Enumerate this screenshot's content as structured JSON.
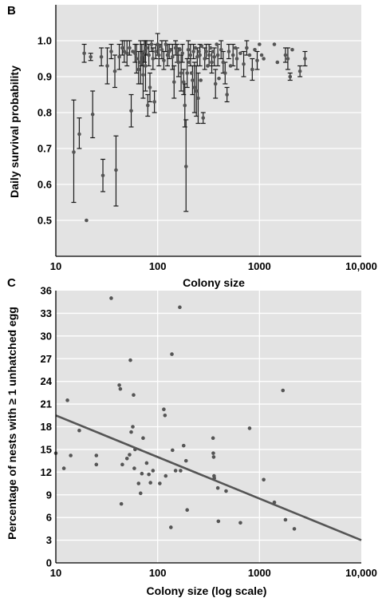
{
  "chart_data": [
    {
      "panel": "B",
      "type": "scatter",
      "xlabel": "Colony size",
      "ylabel": "Daily survival probability",
      "x_scale": "log",
      "xlim": [
        10,
        10000
      ],
      "ylim": [
        0.4,
        1.1
      ],
      "x_tick_labels": [
        "10",
        "100",
        "1000",
        "10,000"
      ],
      "y_tick_labels": [
        "0.5",
        "0.6",
        "0.7",
        "0.8",
        "0.9",
        "1.0"
      ],
      "grid": true,
      "error_bars": true,
      "points": [
        {
          "x": 15,
          "y": 0.69,
          "lo": 0.55,
          "hi": 0.835
        },
        {
          "x": 17,
          "y": 0.74,
          "lo": 0.7,
          "hi": 0.785
        },
        {
          "x": 19,
          "y": 0.965,
          "lo": 0.94,
          "hi": 0.99
        },
        {
          "x": 20,
          "y": 0.5
        },
        {
          "x": 22,
          "y": 0.955,
          "lo": 0.945,
          "hi": 0.965
        },
        {
          "x": 23,
          "y": 0.795,
          "lo": 0.73,
          "hi": 0.86
        },
        {
          "x": 28,
          "y": 0.955,
          "lo": 0.93,
          "hi": 0.98
        },
        {
          "x": 29,
          "y": 0.625,
          "lo": 0.58,
          "hi": 0.67
        },
        {
          "x": 32,
          "y": 0.93,
          "lo": 0.88,
          "hi": 0.98
        },
        {
          "x": 35,
          "y": 0.97,
          "lo": 0.95,
          "hi": 0.99
        },
        {
          "x": 38,
          "y": 0.915,
          "lo": 0.87,
          "hi": 0.96
        },
        {
          "x": 39,
          "y": 0.64,
          "lo": 0.54,
          "hi": 0.735
        },
        {
          "x": 42,
          "y": 0.955,
          "lo": 0.92,
          "hi": 0.99
        },
        {
          "x": 45,
          "y": 0.98,
          "lo": 0.96,
          "hi": 1.0
        },
        {
          "x": 47,
          "y": 0.97,
          "lo": 0.94,
          "hi": 1.0
        },
        {
          "x": 50,
          "y": 0.965,
          "lo": 0.93,
          "hi": 1.0
        },
        {
          "x": 53,
          "y": 0.98,
          "lo": 0.96,
          "hi": 1.0
        },
        {
          "x": 55,
          "y": 0.805,
          "lo": 0.76,
          "hi": 0.85
        },
        {
          "x": 57,
          "y": 0.97
        },
        {
          "x": 60,
          "y": 0.965,
          "lo": 0.94,
          "hi": 0.99
        },
        {
          "x": 62,
          "y": 0.95,
          "lo": 0.91,
          "hi": 0.99
        },
        {
          "x": 65,
          "y": 0.92,
          "lo": 0.88,
          "hi": 0.97
        },
        {
          "x": 68,
          "y": 0.94,
          "lo": 0.88,
          "hi": 1.0
        },
        {
          "x": 70,
          "y": 0.96,
          "lo": 0.93,
          "hi": 0.99
        },
        {
          "x": 72,
          "y": 0.905,
          "lo": 0.84,
          "hi": 0.97
        },
        {
          "x": 74,
          "y": 0.97,
          "lo": 0.94,
          "hi": 1.0
        },
        {
          "x": 76,
          "y": 0.93,
          "lo": 0.86,
          "hi": 1.0
        },
        {
          "x": 78,
          "y": 0.98,
          "lo": 0.96,
          "hi": 1.0
        },
        {
          "x": 80,
          "y": 0.82,
          "lo": 0.79,
          "hi": 0.85
        },
        {
          "x": 82,
          "y": 0.96,
          "lo": 0.93,
          "hi": 0.99
        },
        {
          "x": 84,
          "y": 0.87,
          "lo": 0.83,
          "hi": 0.91
        },
        {
          "x": 87,
          "y": 0.99,
          "lo": 0.97,
          "hi": 1.0
        },
        {
          "x": 90,
          "y": 0.95,
          "lo": 0.92,
          "hi": 0.98
        },
        {
          "x": 93,
          "y": 0.83,
          "lo": 0.8,
          "hi": 0.86
        },
        {
          "x": 96,
          "y": 0.97,
          "lo": 0.95,
          "hi": 0.99
        },
        {
          "x": 100,
          "y": 0.99,
          "lo": 0.96,
          "hi": 1.02
        },
        {
          "x": 103,
          "y": 0.96,
          "lo": 0.93,
          "hi": 0.99
        },
        {
          "x": 106,
          "y": 0.985
        },
        {
          "x": 110,
          "y": 0.975,
          "lo": 0.95,
          "hi": 1.0
        },
        {
          "x": 115,
          "y": 0.945,
          "lo": 0.92,
          "hi": 0.97
        },
        {
          "x": 120,
          "y": 0.99,
          "lo": 0.97,
          "hi": 1.0
        },
        {
          "x": 125,
          "y": 0.96,
          "lo": 0.93,
          "hi": 0.99
        },
        {
          "x": 130,
          "y": 0.97,
          "lo": 0.95,
          "hi": 0.99
        },
        {
          "x": 135,
          "y": 0.975
        },
        {
          "x": 140,
          "y": 0.955,
          "lo": 0.92,
          "hi": 0.99
        },
        {
          "x": 145,
          "y": 0.885,
          "lo": 0.84,
          "hi": 0.93
        },
        {
          "x": 150,
          "y": 0.98,
          "lo": 0.96,
          "hi": 1.0
        },
        {
          "x": 155,
          "y": 0.965,
          "lo": 0.94,
          "hi": 0.99
        },
        {
          "x": 160,
          "y": 0.94,
          "lo": 0.9,
          "hi": 0.98
        },
        {
          "x": 165,
          "y": 0.975
        },
        {
          "x": 170,
          "y": 0.91,
          "lo": 0.86,
          "hi": 0.96
        },
        {
          "x": 175,
          "y": 0.965,
          "lo": 0.94,
          "hi": 0.99
        },
        {
          "x": 180,
          "y": 0.885,
          "lo": 0.85,
          "hi": 0.92
        },
        {
          "x": 185,
          "y": 0.82,
          "lo": 0.76,
          "hi": 0.88
        },
        {
          "x": 190,
          "y": 0.65,
          "lo": 0.525,
          "hi": 0.78
        },
        {
          "x": 195,
          "y": 0.91,
          "lo": 0.87,
          "hi": 0.95
        },
        {
          "x": 200,
          "y": 0.975,
          "lo": 0.95,
          "hi": 1.0
        },
        {
          "x": 205,
          "y": 0.94
        },
        {
          "x": 210,
          "y": 0.96,
          "lo": 0.93,
          "hi": 0.99
        },
        {
          "x": 215,
          "y": 0.91
        },
        {
          "x": 220,
          "y": 0.89,
          "lo": 0.85,
          "hi": 0.93
        },
        {
          "x": 225,
          "y": 0.97,
          "lo": 0.95,
          "hi": 0.99
        },
        {
          "x": 230,
          "y": 0.87,
          "lo": 0.8,
          "hi": 0.94
        },
        {
          "x": 235,
          "y": 0.98
        },
        {
          "x": 240,
          "y": 0.86,
          "lo": 0.79,
          "hi": 0.93
        },
        {
          "x": 245,
          "y": 0.955,
          "lo": 0.93,
          "hi": 0.98
        },
        {
          "x": 250,
          "y": 0.84,
          "lo": 0.77,
          "hi": 0.91
        },
        {
          "x": 255,
          "y": 0.97
        },
        {
          "x": 260,
          "y": 0.96,
          "lo": 0.93,
          "hi": 0.99
        },
        {
          "x": 265,
          "y": 0.89
        },
        {
          "x": 270,
          "y": 0.985
        },
        {
          "x": 280,
          "y": 0.785,
          "lo": 0.77,
          "hi": 0.8
        },
        {
          "x": 290,
          "y": 0.95,
          "lo": 0.92,
          "hi": 0.98
        },
        {
          "x": 300,
          "y": 0.97,
          "lo": 0.95,
          "hi": 0.99
        },
        {
          "x": 310,
          "y": 0.93
        },
        {
          "x": 320,
          "y": 0.96,
          "lo": 0.93,
          "hi": 0.99
        },
        {
          "x": 330,
          "y": 0.98
        },
        {
          "x": 340,
          "y": 0.94,
          "lo": 0.91,
          "hi": 0.97
        },
        {
          "x": 350,
          "y": 0.97
        },
        {
          "x": 360,
          "y": 0.955,
          "lo": 0.93,
          "hi": 0.98
        },
        {
          "x": 370,
          "y": 0.88,
          "lo": 0.84,
          "hi": 0.92
        },
        {
          "x": 380,
          "y": 0.99
        },
        {
          "x": 390,
          "y": 0.96,
          "lo": 0.93,
          "hi": 0.99
        },
        {
          "x": 400,
          "y": 0.895
        },
        {
          "x": 420,
          "y": 0.975,
          "lo": 0.95,
          "hi": 1.0
        },
        {
          "x": 440,
          "y": 0.94,
          "lo": 0.91,
          "hi": 0.97
        },
        {
          "x": 460,
          "y": 0.91,
          "lo": 0.88,
          "hi": 0.94
        },
        {
          "x": 480,
          "y": 0.85,
          "lo": 0.83,
          "hi": 0.87
        },
        {
          "x": 500,
          "y": 0.97,
          "lo": 0.95,
          "hi": 0.99
        },
        {
          "x": 520,
          "y": 0.93
        },
        {
          "x": 550,
          "y": 0.96,
          "lo": 0.93,
          "hi": 0.99
        },
        {
          "x": 580,
          "y": 0.98
        },
        {
          "x": 600,
          "y": 0.95,
          "lo": 0.92,
          "hi": 0.98
        },
        {
          "x": 650,
          "y": 0.965
        },
        {
          "x": 700,
          "y": 0.935,
          "lo": 0.9,
          "hi": 0.97
        },
        {
          "x": 750,
          "y": 0.98,
          "lo": 0.96,
          "hi": 1.0
        },
        {
          "x": 800,
          "y": 0.96
        },
        {
          "x": 850,
          "y": 0.92,
          "lo": 0.89,
          "hi": 0.95
        },
        {
          "x": 900,
          "y": 0.975
        },
        {
          "x": 950,
          "y": 0.945,
          "lo": 0.92,
          "hi": 0.97
        },
        {
          "x": 1000,
          "y": 0.99
        },
        {
          "x": 1050,
          "y": 0.96
        },
        {
          "x": 1100,
          "y": 0.95
        },
        {
          "x": 1400,
          "y": 0.99
        },
        {
          "x": 1500,
          "y": 0.94
        },
        {
          "x": 1800,
          "y": 0.96,
          "lo": 0.94,
          "hi": 0.98
        },
        {
          "x": 1900,
          "y": 0.95,
          "lo": 0.92,
          "hi": 0.98
        },
        {
          "x": 2000,
          "y": 0.9,
          "lo": 0.89,
          "hi": 0.91
        },
        {
          "x": 2100,
          "y": 0.975
        },
        {
          "x": 2500,
          "y": 0.915,
          "lo": 0.9,
          "hi": 0.93
        },
        {
          "x": 2800,
          "y": 0.95,
          "lo": 0.93,
          "hi": 0.97
        }
      ]
    },
    {
      "panel": "C",
      "type": "scatter",
      "xlabel": "Colony size (log scale)",
      "ylabel": "Percentage of nests with ≥ 1 unhatched egg",
      "x_scale": "log",
      "xlim": [
        10,
        10000
      ],
      "ylim": [
        0,
        36
      ],
      "x_tick_labels": [
        "10",
        "100",
        "1000",
        "10,000"
      ],
      "y_tick_labels": [
        "0",
        "3",
        "6",
        "9",
        "12",
        "15",
        "18",
        "21",
        "24",
        "27",
        "30",
        "33",
        "36"
      ],
      "grid": true,
      "fit_line": {
        "x": [
          10,
          10000
        ],
        "y": [
          19.5,
          3.0
        ]
      },
      "points": [
        {
          "x": 10,
          "y": 14.5
        },
        {
          "x": 12,
          "y": 12.5
        },
        {
          "x": 13,
          "y": 21.5
        },
        {
          "x": 14,
          "y": 14.2
        },
        {
          "x": 17,
          "y": 17.5
        },
        {
          "x": 25,
          "y": 14.2
        },
        {
          "x": 25,
          "y": 13.0
        },
        {
          "x": 35,
          "y": 35.0
        },
        {
          "x": 42,
          "y": 23.5
        },
        {
          "x": 43,
          "y": 23.0
        },
        {
          "x": 44,
          "y": 7.8
        },
        {
          "x": 45,
          "y": 13.0
        },
        {
          "x": 50,
          "y": 13.8
        },
        {
          "x": 53,
          "y": 14.3
        },
        {
          "x": 54,
          "y": 26.8
        },
        {
          "x": 55,
          "y": 17.3
        },
        {
          "x": 57,
          "y": 18.0
        },
        {
          "x": 58,
          "y": 22.2
        },
        {
          "x": 59,
          "y": 12.5
        },
        {
          "x": 60,
          "y": 15.0
        },
        {
          "x": 65,
          "y": 10.5
        },
        {
          "x": 68,
          "y": 9.2
        },
        {
          "x": 70,
          "y": 11.8
        },
        {
          "x": 72,
          "y": 16.5
        },
        {
          "x": 78,
          "y": 13.2
        },
        {
          "x": 82,
          "y": 11.7
        },
        {
          "x": 85,
          "y": 10.6
        },
        {
          "x": 90,
          "y": 12.2
        },
        {
          "x": 105,
          "y": 10.5
        },
        {
          "x": 115,
          "y": 20.3
        },
        {
          "x": 118,
          "y": 19.5
        },
        {
          "x": 120,
          "y": 11.5
        },
        {
          "x": 135,
          "y": 4.7
        },
        {
          "x": 138,
          "y": 27.6
        },
        {
          "x": 140,
          "y": 14.9
        },
        {
          "x": 150,
          "y": 12.2
        },
        {
          "x": 165,
          "y": 33.8
        },
        {
          "x": 168,
          "y": 12.2
        },
        {
          "x": 180,
          "y": 15.5
        },
        {
          "x": 190,
          "y": 13.5
        },
        {
          "x": 195,
          "y": 7.0
        },
        {
          "x": 350,
          "y": 16.5
        },
        {
          "x": 352,
          "y": 14.5
        },
        {
          "x": 355,
          "y": 14.0
        },
        {
          "x": 358,
          "y": 11.5
        },
        {
          "x": 360,
          "y": 11.2
        },
        {
          "x": 390,
          "y": 9.9
        },
        {
          "x": 395,
          "y": 5.5
        },
        {
          "x": 470,
          "y": 9.5
        },
        {
          "x": 650,
          "y": 5.3
        },
        {
          "x": 800,
          "y": 17.8
        },
        {
          "x": 1100,
          "y": 11.0
        },
        {
          "x": 1400,
          "y": 8.0
        },
        {
          "x": 1700,
          "y": 22.8
        },
        {
          "x": 1800,
          "y": 5.7
        },
        {
          "x": 2200,
          "y": 4.5
        }
      ]
    }
  ],
  "panels": [
    {
      "letter": "B"
    },
    {
      "letter": "C"
    }
  ],
  "colors": {
    "plot_background": "#e3e3e3",
    "grid": "#ffffff",
    "points": "#555555",
    "error_bars": "#1a1a1a",
    "fit_line": "#555555",
    "axis": "#000000"
  }
}
